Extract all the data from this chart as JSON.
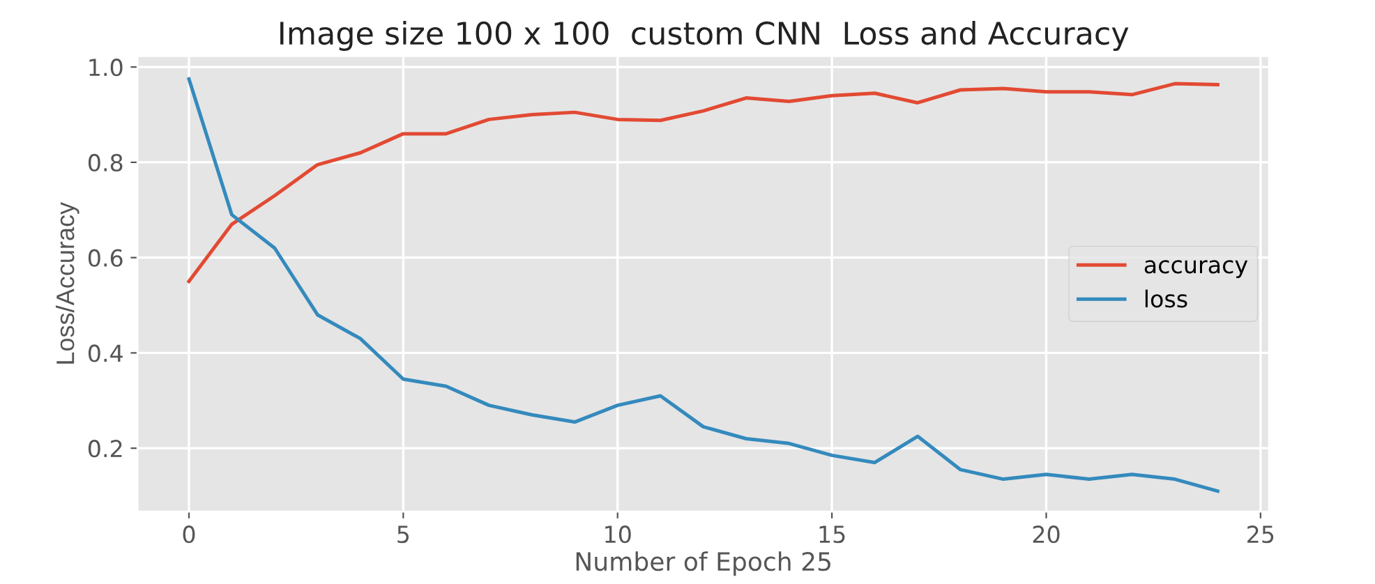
{
  "chart_data": {
    "type": "line",
    "title": "Image size 100 x 100  custom CNN  Loss and Accuracy",
    "xlabel": "Number of Epoch 25",
    "ylabel": "Loss/Accuracy",
    "x": [
      0,
      1,
      2,
      3,
      4,
      5,
      6,
      7,
      8,
      9,
      10,
      11,
      12,
      13,
      14,
      15,
      16,
      17,
      18,
      19,
      20,
      21,
      22,
      23,
      24
    ],
    "series": [
      {
        "name": "accuracy",
        "color": "#e24a33",
        "values": [
          0.55,
          0.67,
          0.73,
          0.795,
          0.82,
          0.86,
          0.86,
          0.89,
          0.9,
          0.905,
          0.89,
          0.888,
          0.908,
          0.935,
          0.928,
          0.94,
          0.945,
          0.925,
          0.952,
          0.955,
          0.948,
          0.948,
          0.942,
          0.965,
          0.963
        ]
      },
      {
        "name": "loss",
        "color": "#348abd",
        "values": [
          0.975,
          0.69,
          0.62,
          0.48,
          0.43,
          0.345,
          0.33,
          0.29,
          0.27,
          0.255,
          0.29,
          0.31,
          0.245,
          0.22,
          0.21,
          0.185,
          0.17,
          0.225,
          0.155,
          0.135,
          0.145,
          0.135,
          0.145,
          0.135,
          0.11
        ]
      }
    ],
    "xlim": [
      -1.2,
      25.2
    ],
    "xticks": [
      0,
      5,
      10,
      15,
      20,
      25
    ],
    "ylim": [
      0.067,
      1.023
    ],
    "yticks": [
      {
        "value": 0.2,
        "label": "0.2"
      },
      {
        "value": 0.4,
        "label": "0.4"
      },
      {
        "value": 0.6,
        "label": "0.6"
      },
      {
        "value": 0.8,
        "label": "0.8"
      },
      {
        "value": 1.0,
        "label": "1.0"
      }
    ],
    "grid": true,
    "legend": "center right"
  }
}
